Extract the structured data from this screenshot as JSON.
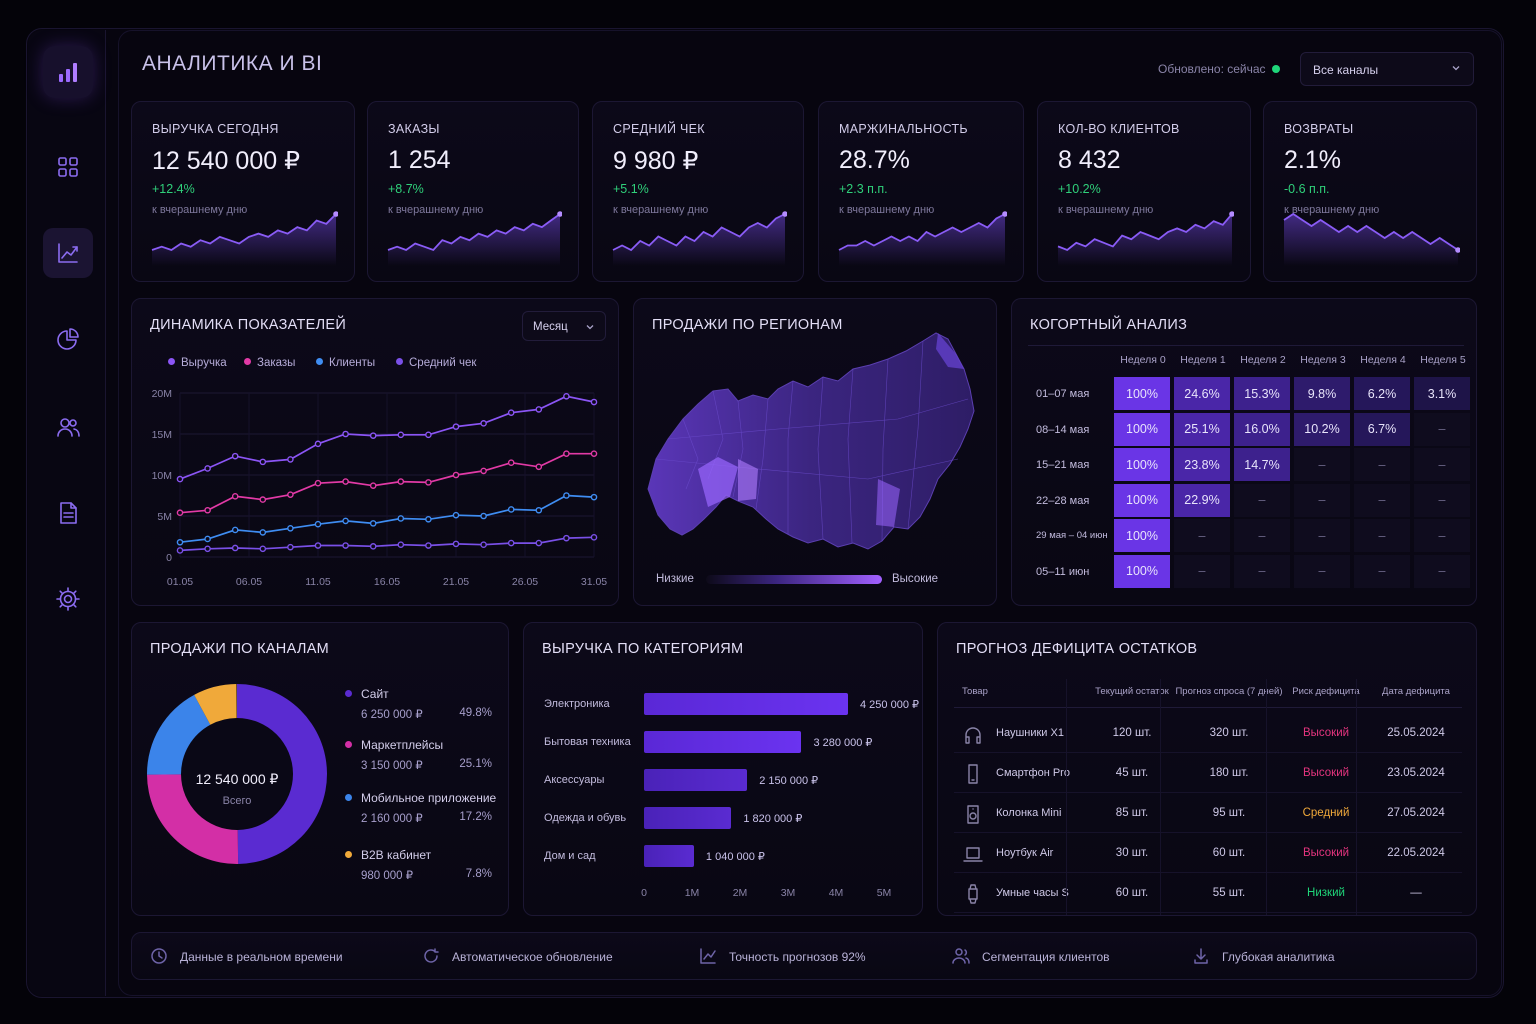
{
  "header": {
    "title": "АНАЛИТИКА И BI",
    "updated": "Обновлено: сейчас",
    "channel_select": "Все каналы"
  },
  "sidebar": {
    "items": [
      {
        "icon": "bar-chart-icon"
      },
      {
        "icon": "grid-icon"
      },
      {
        "icon": "trend-icon",
        "active": true
      },
      {
        "icon": "pie-chart-icon"
      },
      {
        "icon": "users-icon"
      },
      {
        "icon": "document-icon"
      },
      {
        "icon": "gear-icon"
      }
    ]
  },
  "kpis": [
    {
      "label": "ВЫРУЧКА СЕГОДНЯ",
      "value": "12 540 000 ₽",
      "change": "+12.4%",
      "positive": true,
      "sub": "к вчерашнему дню",
      "trend": [
        3,
        4,
        3,
        5,
        4,
        6,
        5,
        7,
        6,
        5,
        7,
        8,
        7,
        9,
        8,
        10,
        9,
        12,
        11,
        14
      ]
    },
    {
      "label": "ЗАКАЗЫ",
      "value": "1 254",
      "change": "+8.7%",
      "positive": true,
      "sub": "к вчерашнему дню",
      "trend": [
        4,
        5,
        4,
        6,
        5,
        4,
        7,
        6,
        8,
        7,
        9,
        8,
        10,
        9,
        11,
        10,
        12,
        11,
        13,
        15
      ]
    },
    {
      "label": "СРЕДНИЙ ЧЕК",
      "value": "9 980 ₽",
      "change": "+5.1%",
      "positive": true,
      "sub": "к вчерашнему дню",
      "trend": [
        4,
        5,
        4,
        6,
        5,
        7,
        6,
        5,
        7,
        6,
        8,
        7,
        9,
        8,
        7,
        9,
        10,
        9,
        11,
        12
      ]
    },
    {
      "label": "МАРЖИНАЛЬНОСТЬ",
      "value": "28.7%",
      "change": "+2.3 п.п.",
      "positive": true,
      "sub": "к вчерашнему дню",
      "trend": [
        3,
        4,
        4,
        5,
        4,
        5,
        6,
        5,
        6,
        5,
        7,
        6,
        7,
        8,
        7,
        8,
        9,
        8,
        10,
        11
      ]
    },
    {
      "label": "КОЛ-ВО КЛИЕНТОВ",
      "value": "8 432",
      "change": "+10.2%",
      "positive": true,
      "sub": "к вчерашнему дню",
      "trend": [
        5,
        4,
        6,
        5,
        7,
        6,
        5,
        8,
        7,
        9,
        8,
        7,
        9,
        10,
        9,
        11,
        10,
        12,
        11,
        14
      ]
    },
    {
      "label": "ВОЗВРАТЫ",
      "value": "2.1%",
      "change": "-0.6 п.п.",
      "positive": false,
      "sub": "к вчерашнему дню",
      "trend": [
        10,
        11,
        10,
        9,
        10,
        9,
        8,
        9,
        8,
        9,
        8,
        7,
        8,
        7,
        8,
        7,
        6,
        7,
        6,
        5
      ]
    }
  ],
  "dynamics": {
    "title": "ДИНАМИКА ПОКАЗАТЕЛЕЙ",
    "period": "Месяц",
    "chart_data": {
      "type": "line",
      "x": [
        "01.05",
        "03.05",
        "05.05",
        "07.05",
        "09.05",
        "11.05",
        "13.05",
        "15.05",
        "17.05",
        "19.05",
        "21.05",
        "23.05",
        "25.05",
        "27.05",
        "29.05",
        "31.05"
      ],
      "xticks": [
        "01.05",
        "06.05",
        "11.05",
        "16.05",
        "21.05",
        "26.05",
        "31.05"
      ],
      "yticks": [
        "0",
        "5M",
        "10M",
        "15M",
        "20M"
      ],
      "ylim": [
        0,
        20
      ],
      "series": [
        {
          "name": "Выручка",
          "color": "#8b55f5",
          "values": [
            9.5,
            10.8,
            12.3,
            11.6,
            11.9,
            13.8,
            15.0,
            14.8,
            14.9,
            14.9,
            15.9,
            16.3,
            17.6,
            18.0,
            19.6,
            18.9
          ]
        },
        {
          "name": "Заказы",
          "color": "#e23aa6",
          "values": [
            5.4,
            5.7,
            7.4,
            7.0,
            7.6,
            9.0,
            9.2,
            8.7,
            9.2,
            9.1,
            10.0,
            10.5,
            11.5,
            11.0,
            12.6,
            12.6
          ]
        },
        {
          "name": "Клиенты",
          "color": "#3f8df2",
          "values": [
            1.8,
            2.2,
            3.3,
            3.0,
            3.5,
            4.0,
            4.4,
            4.1,
            4.7,
            4.6,
            5.1,
            5.0,
            5.8,
            5.7,
            7.5,
            7.3
          ]
        },
        {
          "name": "Средний чек",
          "color": "#7a50e8",
          "values": [
            0.8,
            1.0,
            1.1,
            1.0,
            1.2,
            1.4,
            1.4,
            1.3,
            1.5,
            1.4,
            1.6,
            1.5,
            1.7,
            1.7,
            2.3,
            2.4
          ]
        }
      ]
    }
  },
  "regions": {
    "title": "ПРОДАЖИ ПО РЕГИОНАМ",
    "low": "Низкие",
    "high": "Высокие"
  },
  "cohort": {
    "title": "КОГОРТНЫЙ АНАЛИЗ",
    "weeks": [
      "Неделя 0",
      "Неделя 1",
      "Неделя 2",
      "Неделя 3",
      "Неделя 4",
      "Неделя 5"
    ],
    "rows": [
      {
        "label": "01–07 мая",
        "cells": [
          "100%",
          "24.6%",
          "15.3%",
          "9.8%",
          "6.2%",
          "3.1%"
        ]
      },
      {
        "label": "08–14 мая",
        "cells": [
          "100%",
          "25.1%",
          "16.0%",
          "10.2%",
          "6.7%",
          "–"
        ]
      },
      {
        "label": "15–21 мая",
        "cells": [
          "100%",
          "23.8%",
          "14.7%",
          "–",
          "–",
          "–"
        ]
      },
      {
        "label": "22–28 мая",
        "cells": [
          "100%",
          "22.9%",
          "–",
          "–",
          "–",
          "–"
        ]
      },
      {
        "label": "29 мая – 04 июн",
        "cells": [
          "100%",
          "–",
          "–",
          "–",
          "–",
          "–"
        ]
      },
      {
        "label": "05–11 июн",
        "cells": [
          "100%",
          "–",
          "–",
          "–",
          "–",
          "–"
        ]
      }
    ]
  },
  "channels": {
    "title": "ПРОДАЖИ ПО КАНАЛАМ",
    "total_value": "12 540 000 ₽",
    "total_label": "Всего",
    "chart_data": {
      "type": "pie",
      "items": [
        {
          "name": "Сайт",
          "value": "6 250 000 ₽",
          "pct": "49.8%",
          "share": 49.8,
          "color": "#5a2bd1"
        },
        {
          "name": "Маркетплейсы",
          "value": "3 150 000 ₽",
          "pct": "25.1%",
          "share": 25.1,
          "color": "#d32fa6"
        },
        {
          "name": "Мобильное приложение",
          "value": "2 160 000 ₽",
          "pct": "17.2%",
          "share": 17.2,
          "color": "#3b84ea"
        },
        {
          "name": "B2B кабинет",
          "value": "980 000 ₽",
          "pct": "7.8%",
          "share": 7.8,
          "color": "#f0a93a"
        }
      ]
    }
  },
  "categories": {
    "title": "ВЫРУЧКА ПО КАТЕГОРИЯМ",
    "chart_data": {
      "type": "bar",
      "categories": [
        "Электроника",
        "Бытовая техника",
        "Аксессуары",
        "Одежда и обувь",
        "Дом и сад"
      ],
      "values": [
        4.25,
        3.28,
        2.15,
        1.82,
        1.04
      ],
      "labels": [
        "4 250 000 ₽",
        "3 280 000 ₽",
        "2 150 000 ₽",
        "1 820 000 ₽",
        "1 040 000 ₽"
      ],
      "xticks": [
        "0",
        "1M",
        "2M",
        "3M",
        "4M",
        "5M"
      ],
      "xlim": [
        0,
        5
      ]
    }
  },
  "forecast": {
    "title": "ПРОГНОЗ ДЕФИЦИТА ОСТАТКОВ",
    "headers": [
      "Товар",
      "Текущий остаток",
      "Прогноз спроса (7 дней)",
      "Риск дефицита",
      "Дата дефицита"
    ],
    "rows": [
      {
        "icon": "headphones-icon",
        "name": "Наушники X1",
        "stock": "120 шт.",
        "demand": "320 шт.",
        "risk": "Высокий",
        "risk_color": "#e4347e",
        "date": "25.05.2024"
      },
      {
        "icon": "smartphone-icon",
        "name": "Смартфон Pro",
        "stock": "45 шт.",
        "demand": "180 шт.",
        "risk": "Высокий",
        "risk_color": "#e4347e",
        "date": "23.05.2024"
      },
      {
        "icon": "speaker-icon",
        "name": "Колонка Mini",
        "stock": "85 шт.",
        "demand": "95 шт.",
        "risk": "Средний",
        "risk_color": "#f0a93a",
        "date": "27.05.2024"
      },
      {
        "icon": "laptop-icon",
        "name": "Ноутбук Air",
        "stock": "30 шт.",
        "demand": "60 шт.",
        "risk": "Высокий",
        "risk_color": "#e4347e",
        "date": "22.05.2024"
      },
      {
        "icon": "watch-icon",
        "name": "Умные часы S",
        "stock": "60 шт.",
        "demand": "55 шт.",
        "risk": "Низкий",
        "risk_color": "#1fd67a",
        "date": "—"
      }
    ]
  },
  "footer": [
    {
      "icon": "clock-icon",
      "label": "Данные в реальном времени"
    },
    {
      "icon": "refresh-icon",
      "label": "Автоматическое обновление"
    },
    {
      "icon": "chart-icon",
      "label": "Точность прогнозов 92%"
    },
    {
      "icon": "users-icon",
      "label": "Сегментация клиентов"
    },
    {
      "icon": "download-icon",
      "label": "Глубокая аналитика"
    }
  ]
}
